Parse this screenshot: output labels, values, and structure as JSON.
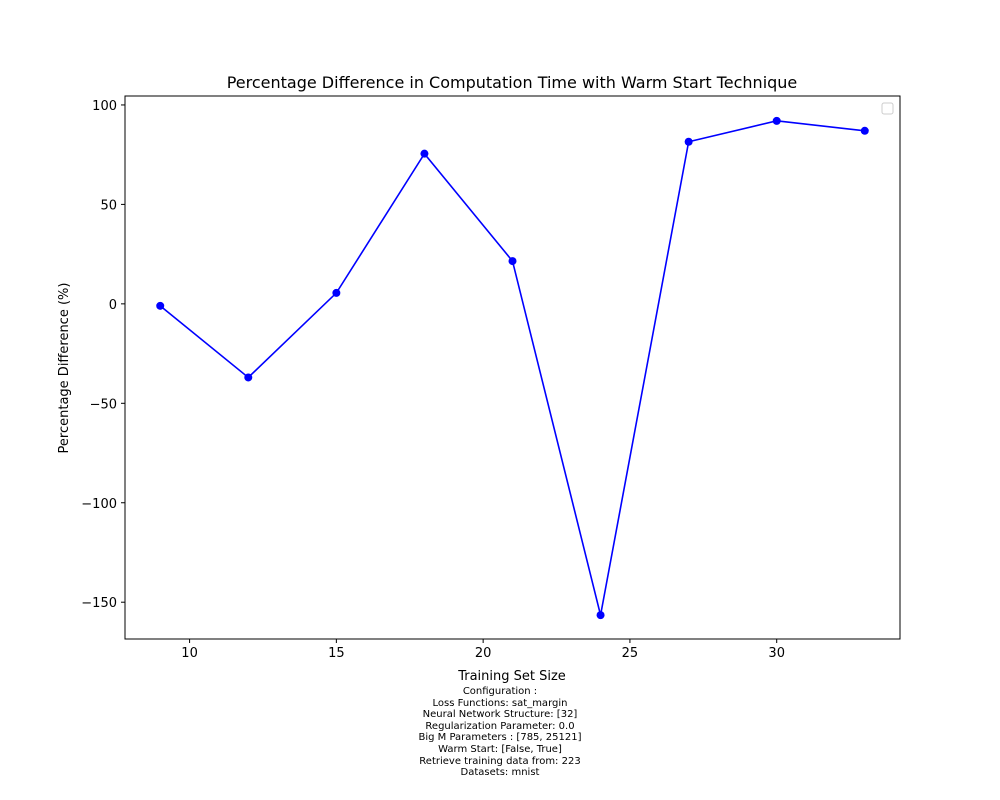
{
  "chart_data": {
    "type": "line",
    "title": "Percentage Difference in Computation Time with Warm Start Technique",
    "xlabel": "Training Set Size",
    "ylabel": "Percentage Difference (%)",
    "x": [
      9,
      12,
      15,
      18,
      21,
      24,
      27,
      30,
      33
    ],
    "series": [
      {
        "values": [
          -1,
          -37,
          5.5,
          75.5,
          21.5,
          -156.5,
          81.5,
          92,
          87
        ],
        "color": "#0000ff",
        "marker": "circle"
      }
    ],
    "xlim": [
      7.8,
      34.2
    ],
    "ylim": [
      -168.5,
      104.5
    ],
    "xticks": [
      10,
      15,
      20,
      25,
      30
    ],
    "yticks": [
      100,
      50,
      0,
      -50,
      -100,
      -150
    ],
    "xtick_labels": [
      "10",
      "15",
      "20",
      "25",
      "30"
    ],
    "ytick_labels": [
      "100",
      "50",
      "0",
      "−50",
      "−100",
      "−150"
    ],
    "grid": false,
    "legend": "top-right (empty)"
  },
  "config": {
    "lines": [
      "Configuration :",
      "Loss Functions: sat_margin",
      "Neural Network Structure: [32]",
      "Regularization Parameter: 0.0",
      "Big M Parameters : [785, 25121]",
      "Warm Start: [False, True]",
      "Retrieve training data from: 223",
      "Datasets: mnist"
    ]
  }
}
